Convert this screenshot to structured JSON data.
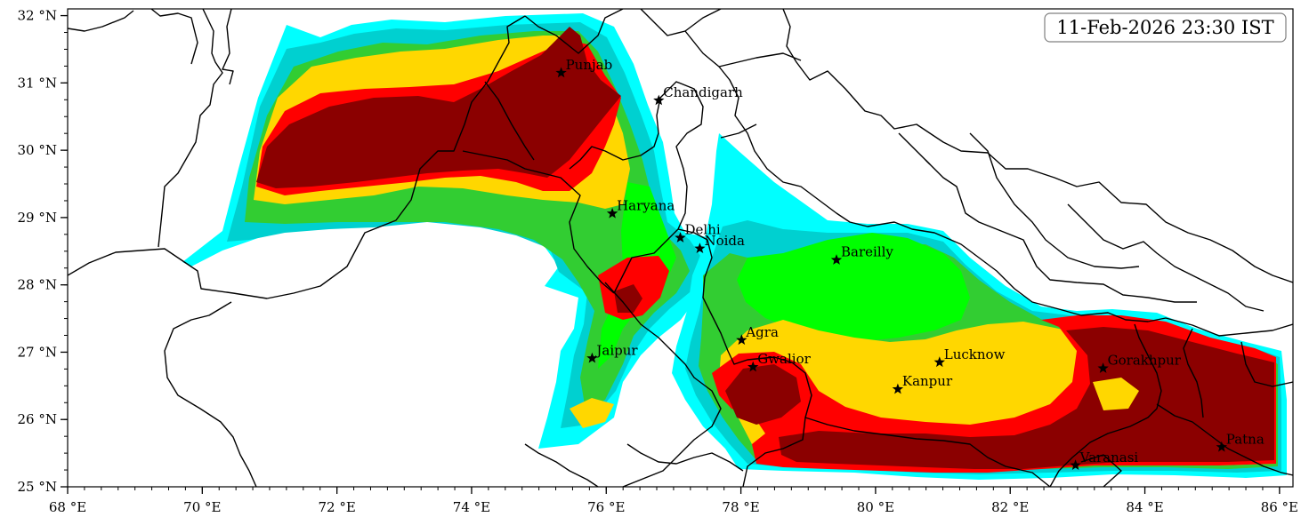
{
  "timestamp": "11-Feb-2026 23:30 IST",
  "map": {
    "lon_range": [
      68,
      86.2
    ],
    "lat_range": [
      25,
      32.1
    ],
    "x_ticks": [
      {
        "value": 68,
        "label": "68 °E"
      },
      {
        "value": 70,
        "label": "70 °E"
      },
      {
        "value": 72,
        "label": "72 °E"
      },
      {
        "value": 74,
        "label": "74 °E"
      },
      {
        "value": 76,
        "label": "76 °E"
      },
      {
        "value": 78,
        "label": "78 °E"
      },
      {
        "value": 80,
        "label": "80 °E"
      },
      {
        "value": 82,
        "label": "82 °E"
      },
      {
        "value": 84,
        "label": "84 °E"
      },
      {
        "value": 86,
        "label": "86 °E"
      }
    ],
    "y_ticks": [
      {
        "value": 25,
        "label": "25 °N"
      },
      {
        "value": 26,
        "label": "26 °N"
      },
      {
        "value": 27,
        "label": "27 °N"
      },
      {
        "value": 28,
        "label": "28 °N"
      },
      {
        "value": 29,
        "label": "29 °N"
      },
      {
        "value": 30,
        "label": "30 °N"
      },
      {
        "value": 31,
        "label": "31 °N"
      },
      {
        "value": 32,
        "label": "32 °N"
      }
    ],
    "cities": [
      {
        "name": "Punjab",
        "lon": 75.33,
        "lat": 31.15
      },
      {
        "name": "Chandigarh",
        "lon": 76.78,
        "lat": 30.74
      },
      {
        "name": "Haryana",
        "lon": 76.09,
        "lat": 29.06
      },
      {
        "name": "Delhi",
        "lon": 77.1,
        "lat": 28.7
      },
      {
        "name": "Noida",
        "lon": 77.39,
        "lat": 28.54
      },
      {
        "name": "Bareilly",
        "lon": 79.42,
        "lat": 28.37
      },
      {
        "name": "Jaipur",
        "lon": 75.79,
        "lat": 26.91
      },
      {
        "name": "Agra",
        "lon": 78.01,
        "lat": 27.18
      },
      {
        "name": "Gwalior",
        "lon": 78.18,
        "lat": 26.78
      },
      {
        "name": "Lucknow",
        "lon": 80.95,
        "lat": 26.85
      },
      {
        "name": "Kanpur",
        "lon": 80.33,
        "lat": 26.45
      },
      {
        "name": "Gorakhpur",
        "lon": 83.38,
        "lat": 26.76
      },
      {
        "name": "Patna",
        "lon": 85.14,
        "lat": 25.59
      },
      {
        "name": "Varanasi",
        "lon": 82.97,
        "lat": 25.32
      }
    ],
    "fog_levels": [
      {
        "level": 1,
        "color": "#00ffff"
      },
      {
        "level": 2,
        "color": "#00d0d0"
      },
      {
        "level": 3,
        "color": "#32cd32"
      },
      {
        "level": 4,
        "color": "#00ff00"
      },
      {
        "level": 5,
        "color": "#ffd700"
      },
      {
        "level": 6,
        "color": "#ff0000"
      },
      {
        "level": 7,
        "color": "#8b0000"
      }
    ]
  }
}
